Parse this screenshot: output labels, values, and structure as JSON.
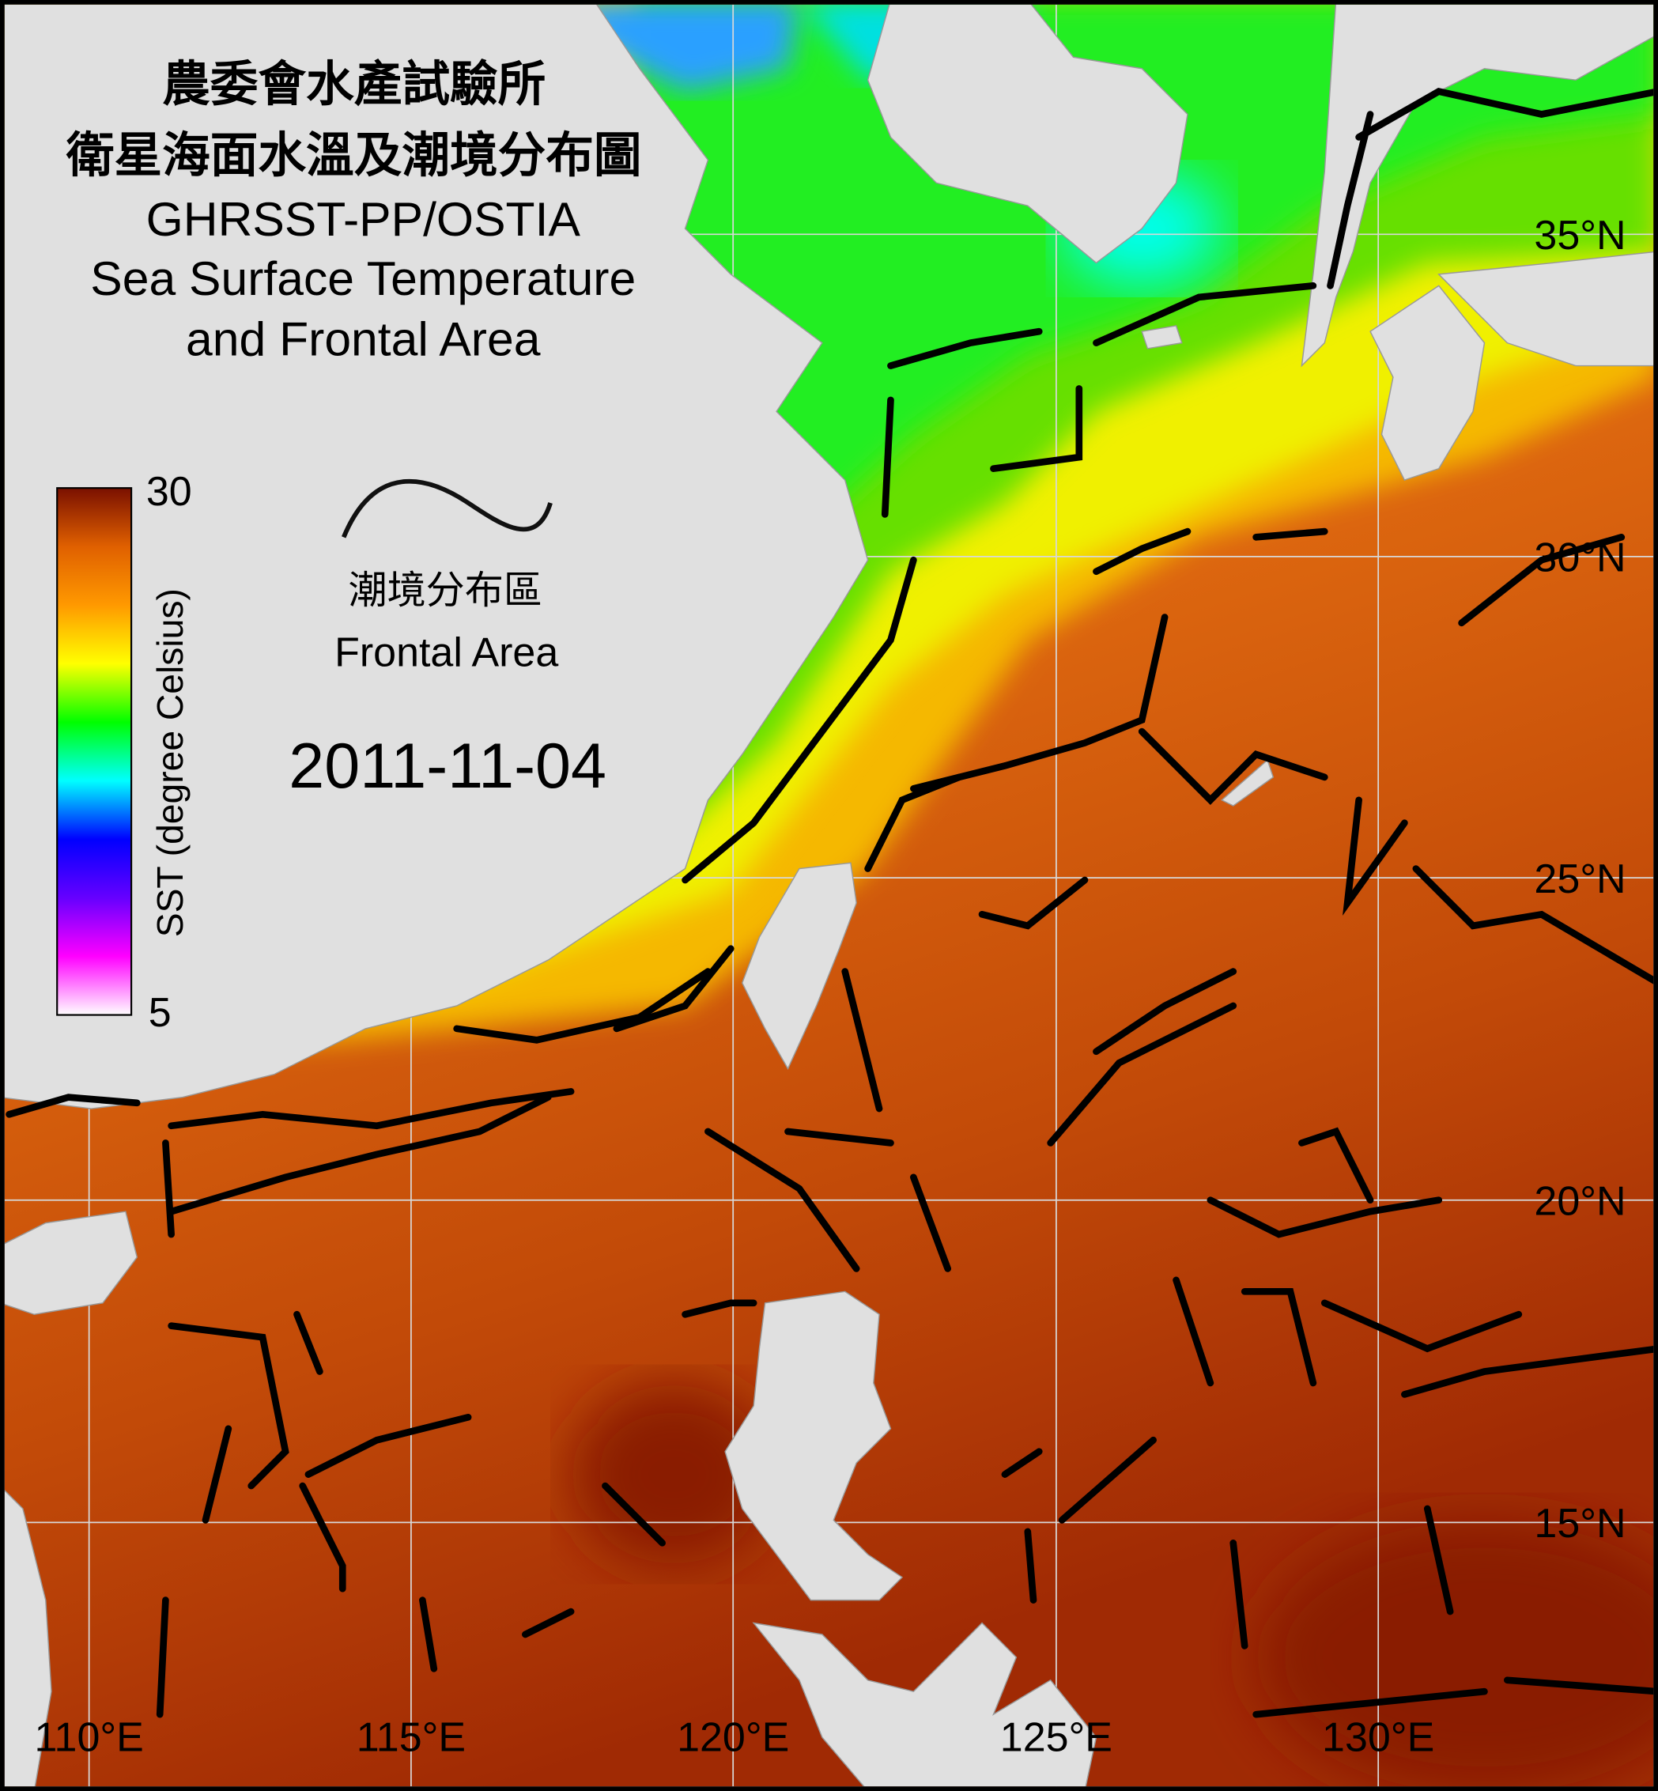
{
  "title": {
    "line1": "農委會水產試驗所",
    "line2": "衛星海面水溫及潮境分布圖",
    "line3": "GHRSST-PP/OSTIA",
    "line4": "Sea Surface Temperature",
    "line5": "and Frontal Area"
  },
  "legend": {
    "front_label_zh": "潮境分布區",
    "front_label_en": "Frontal Area"
  },
  "date": "2011-11-04",
  "colorbar": {
    "label": "SST (degree Celsius)",
    "max_label": "30",
    "min_label": "5",
    "range": [
      5,
      30
    ],
    "colors": [
      "#ffffff",
      "#ff00ff",
      "#6600ff",
      "#0000ff",
      "#00ffff",
      "#00ff00",
      "#ffff00",
      "#ff9900",
      "#e06000",
      "#7a1000"
    ]
  },
  "axes": {
    "lon_labels": [
      "110°E",
      "115°E",
      "120°E",
      "125°E",
      "130°E"
    ],
    "lat_labels": [
      "35°N",
      "30°N",
      "25°N",
      "20°N",
      "15°N"
    ]
  },
  "colors": {
    "land": "#e0e0e0",
    "front": "#000000",
    "grid": "#d8d8d8"
  }
}
